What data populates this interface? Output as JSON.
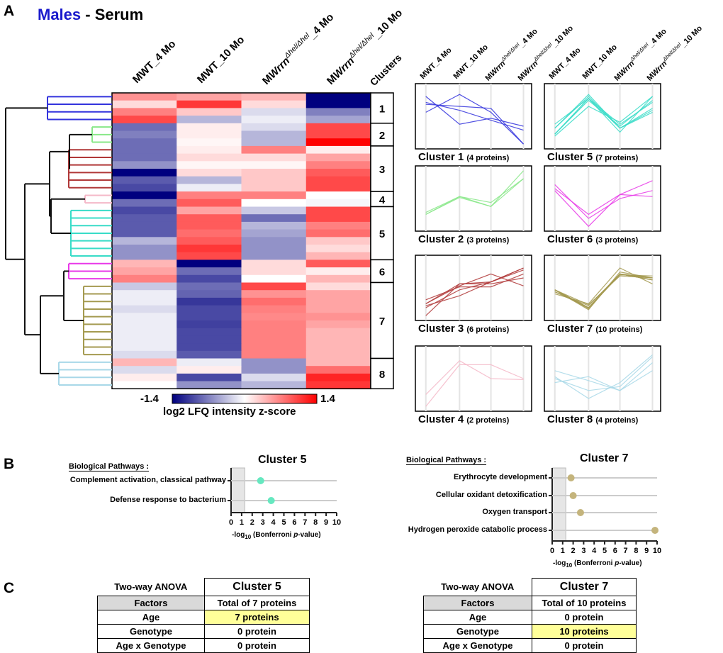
{
  "panel_a": {
    "letter": "A",
    "title_sex": "Males",
    "title_rest": " - Serum",
    "columns": [
      {
        "pre": "MWT",
        "sup": "",
        "post": "_4 Mo"
      },
      {
        "pre": "MWT",
        "sup": "",
        "post": "_10 Mo"
      },
      {
        "pre": "M",
        "ital": "Wrrn",
        "sup": "Δhel/Δhel",
        "post": "_4 Mo"
      },
      {
        "pre": "M",
        "ital": "Wrrn",
        "sup": "Δhel/Δhel",
        "post": "_10 Mo"
      }
    ],
    "clusters_header": "Clusters",
    "colorbar": {
      "min": "-1.4",
      "max": "1.4",
      "label": "log2 LFQ intensity z-score",
      "low_color": "#00007f",
      "mid_color": "#ffffff",
      "high_color": "#ff0000"
    }
  },
  "chart_data": [
    {
      "type": "heatmap",
      "columns": [
        "MWT_4 Mo",
        "MWT_10 Mo",
        "MWrrnΔhel/Δhel_4 Mo",
        "MWrrnΔhel/Δhel_10 Mo"
      ],
      "zlim": [
        -1.4,
        1.4
      ],
      "clusters": [
        {
          "id": "1",
          "color": "#3333dd",
          "title": "Cluster 1",
          "count": "(4 proteins)",
          "rows": [
            [
              0.6,
              0.5,
              0.4,
              -1.4
            ],
            [
              0.2,
              1.1,
              0.2,
              -1.4
            ],
            [
              0.7,
              0.3,
              -0.2,
              -0.7
            ],
            [
              1.0,
              -0.4,
              -0.1,
              -0.5
            ]
          ]
        },
        {
          "id": "2",
          "color": "#88e888",
          "title": "Cluster 2",
          "count": "(3 proteins)",
          "rows": [
            [
              -0.8,
              0.1,
              -0.2,
              1.0
            ],
            [
              -0.7,
              0.1,
              -0.4,
              1.0
            ],
            [
              -0.8,
              0.05,
              -0.4,
              1.4
            ]
          ]
        },
        {
          "id": "3",
          "color": "#b03838",
          "title": "Cluster 3",
          "count": "(6 proteins)",
          "rows": [
            [
              -0.8,
              0.1,
              0.7,
              0.1
            ],
            [
              -0.8,
              0.2,
              0.2,
              0.5
            ],
            [
              -0.6,
              0.05,
              0.05,
              0.7
            ],
            [
              -1.4,
              0.2,
              0.3,
              0.9
            ],
            [
              -0.9,
              -0.4,
              0.3,
              1.0
            ],
            [
              -1.0,
              -0.1,
              0.3,
              1.0
            ]
          ]
        },
        {
          "id": "4",
          "color": "#f4b8c8",
          "title": "Cluster 4",
          "count": "(2 proteins)",
          "rows": [
            [
              -1.4,
              0.7,
              0.7,
              0.0
            ],
            [
              -0.8,
              0.9,
              0.0,
              -0.05
            ]
          ]
        },
        {
          "id": "5",
          "color": "#38dcc8",
          "title": "Cluster 5",
          "count": "(7 proteins)",
          "rows": [
            [
              -1.0,
              0.5,
              -0.3,
              1.0
            ],
            [
              -0.9,
              0.9,
              -0.8,
              1.0
            ],
            [
              -0.9,
              0.9,
              -0.4,
              0.7
            ],
            [
              -0.9,
              0.8,
              -0.5,
              0.8
            ],
            [
              -0.4,
              0.9,
              -0.6,
              0.3
            ],
            [
              -0.6,
              1.1,
              -0.6,
              0.2
            ],
            [
              -0.6,
              1.0,
              -0.6,
              0.4
            ]
          ]
        },
        {
          "id": "6",
          "color": "#e838e8",
          "title": "Cluster 6",
          "count": "(3 proteins)",
          "rows": [
            [
              0.4,
              -1.4,
              0.2,
              0.9
            ],
            [
              0.5,
              -0.8,
              0.2,
              0.1
            ],
            [
              0.7,
              -1.0,
              0.0,
              0.4
            ]
          ]
        },
        {
          "id": "7",
          "color": "#a49a50",
          "title": "Cluster 7",
          "count": "(10 proteins)",
          "rows": [
            [
              -0.3,
              -0.8,
              1.0,
              0.2
            ],
            [
              -0.1,
              -0.85,
              0.6,
              0.5
            ],
            [
              -0.1,
              -1.1,
              0.8,
              0.5
            ],
            [
              -0.2,
              -1.0,
              0.7,
              0.5
            ],
            [
              -0.1,
              -1.0,
              0.65,
              0.6
            ],
            [
              -0.1,
              -1.05,
              0.7,
              0.5
            ],
            [
              -0.1,
              -1.0,
              0.7,
              0.4
            ],
            [
              -0.1,
              -1.0,
              0.7,
              0.4
            ],
            [
              -0.1,
              -1.0,
              0.7,
              0.4
            ],
            [
              -0.2,
              -0.9,
              0.7,
              0.4
            ]
          ]
        },
        {
          "id": "8",
          "color": "#a8d8e8",
          "title": "Cluster 8",
          "count": "(4 proteins)",
          "rows": [
            [
              0.4,
              -0.1,
              -0.6,
              0.4
            ],
            [
              -0.2,
              0.1,
              -0.6,
              0.8
            ],
            [
              0.1,
              -1.0,
              -0.2,
              1.2
            ],
            [
              0.0,
              -0.6,
              -0.4,
              1.1
            ]
          ]
        }
      ]
    },
    {
      "type": "scatter",
      "title": "Cluster 5",
      "ylabel_header": "Biological Pathways :",
      "xlabel": "-log10 (Bonferroni p-value)",
      "xlim": [
        0,
        10
      ],
      "xticks": [
        0,
        1,
        2,
        3,
        4,
        5,
        6,
        7,
        8,
        9,
        10
      ],
      "threshold": 1.3,
      "color": "#66e8c0",
      "categories": [
        "Complement activation, classical pathway",
        "Defense response to bacterium"
      ],
      "values": [
        2.8,
        3.8
      ]
    },
    {
      "type": "scatter",
      "title": "Cluster 7",
      "ylabel_header": "Biological Pathways :",
      "xlabel": "-log10 (Bonferroni p-value)",
      "xlim": [
        0,
        10
      ],
      "xticks": [
        0,
        1,
        2,
        3,
        4,
        5,
        6,
        7,
        8,
        9,
        10
      ],
      "threshold": 1.3,
      "color": "#c4b47c",
      "categories": [
        "Erythrocyte development",
        "Cellular oxidant detoxification",
        "Oxygen transport",
        "Hydrogen peroxide catabolic process"
      ],
      "values": [
        1.8,
        2.0,
        2.7,
        9.8
      ]
    }
  ],
  "panel_b": {
    "letter": "B",
    "xlabel_pre": "-log",
    "xlabel_sub": "10",
    "xlabel_mid": " (Bonferroni ",
    "xlabel_p": "p",
    "xlabel_post": "-value)"
  },
  "panel_c": {
    "letter": "C",
    "tables": [
      {
        "corner": "Two-way ANOVA",
        "cluster": "Cluster 5",
        "factors": "Factors",
        "total": "Total of 7 proteins",
        "rows": [
          {
            "factor": "Age",
            "value": "7 proteins",
            "highlight": true
          },
          {
            "factor": "Genotype",
            "value": "0 protein",
            "highlight": false
          },
          {
            "factor": "Age x Genotype",
            "value": "0 protein",
            "highlight": false
          }
        ]
      },
      {
        "corner": "Two-way ANOVA",
        "cluster": "Cluster 7",
        "factors": "Factors",
        "total": "Total of 10 proteins",
        "rows": [
          {
            "factor": "Age",
            "value": "0 protein",
            "highlight": false
          },
          {
            "factor": "Genotype",
            "value": "10 proteins",
            "highlight": true
          },
          {
            "factor": "Age x Genotype",
            "value": "0 protein",
            "highlight": false
          }
        ]
      }
    ],
    "highlight_color": "#ffff99"
  }
}
